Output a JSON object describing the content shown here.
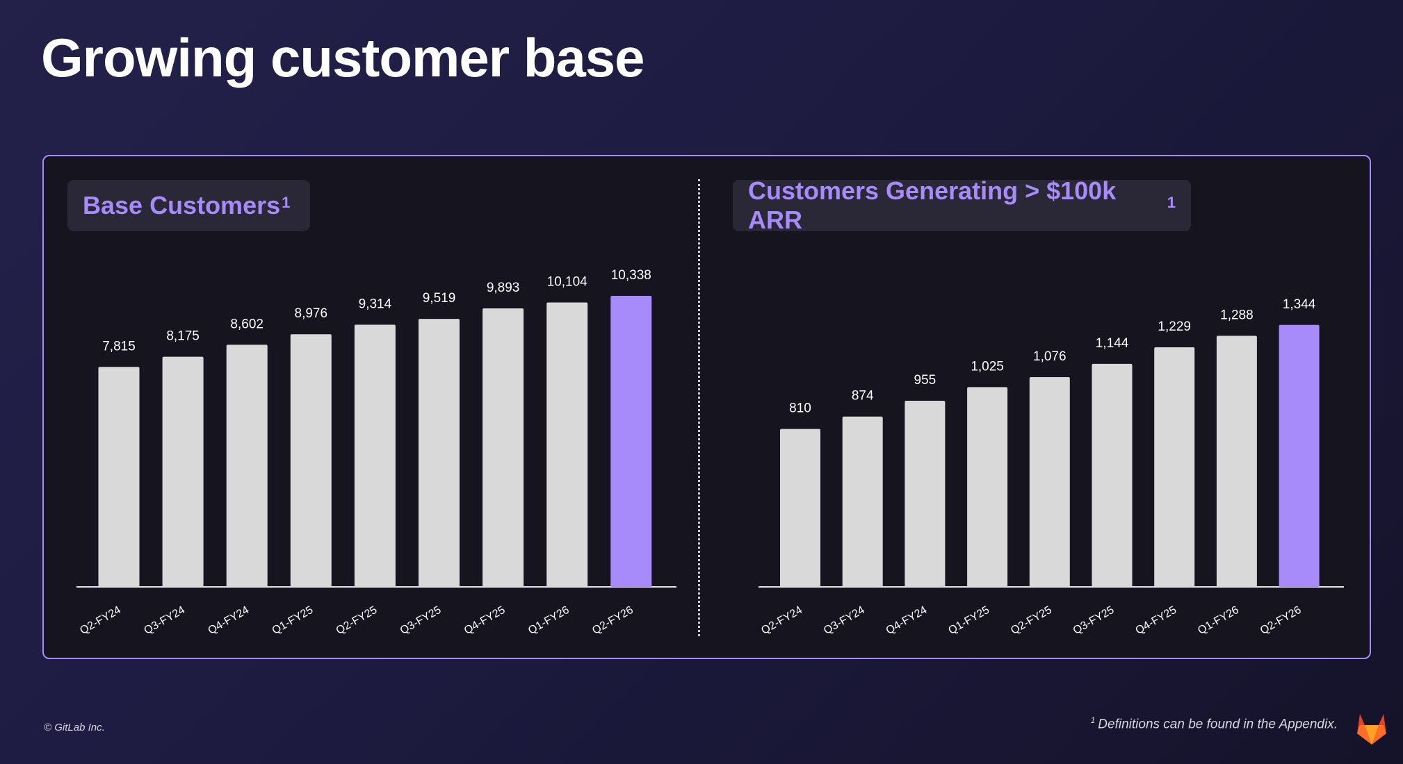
{
  "title": "Growing customer base",
  "colors": {
    "accent": "#a78bfa",
    "bar": "#d9d9d9",
    "background": "#1d1b40"
  },
  "charts": {
    "left": {
      "title": "Base Customers",
      "superscript": "1"
    },
    "right": {
      "title": "Customers Generating > $100k ARR",
      "superscript": "1"
    }
  },
  "chart_data": [
    {
      "type": "bar",
      "title": "Base Customers",
      "categories": [
        "Q2-FY24",
        "Q3-FY24",
        "Q4-FY24",
        "Q1-FY25",
        "Q2-FY25",
        "Q3-FY25",
        "Q4-FY25",
        "Q1-FY26",
        "Q2-FY26"
      ],
      "values": [
        7815,
        8175,
        8602,
        8976,
        9314,
        9519,
        9893,
        10104,
        10338
      ],
      "labels": [
        "7,815",
        "8,175",
        "8,602",
        "8,976",
        "9,314",
        "9,519",
        "9,893",
        "10,104",
        "10,338"
      ],
      "highlight_index": 8,
      "ylim": [
        0,
        11300
      ]
    },
    {
      "type": "bar",
      "title": "Customers Generating > $100k ARR",
      "categories": [
        "Q2-FY24",
        "Q3-FY24",
        "Q4-FY24",
        "Q1-FY25",
        "Q2-FY25",
        "Q3-FY25",
        "Q4-FY25",
        "Q1-FY26",
        "Q2-FY26"
      ],
      "values": [
        810,
        874,
        955,
        1025,
        1076,
        1144,
        1229,
        1288,
        1344
      ],
      "labels": [
        "810",
        "874",
        "955",
        "1,025",
        "1,076",
        "1,144",
        "1,229",
        "1,288",
        "1,344"
      ],
      "highlight_index": 8,
      "ylim": [
        0,
        1500
      ]
    }
  ],
  "footer": {
    "copyright": "© GitLab Inc.",
    "note_superscript": "1",
    "note": "Definitions can be found in the Appendix."
  },
  "logo": {
    "icon": "gitlab-tanuki-icon"
  }
}
